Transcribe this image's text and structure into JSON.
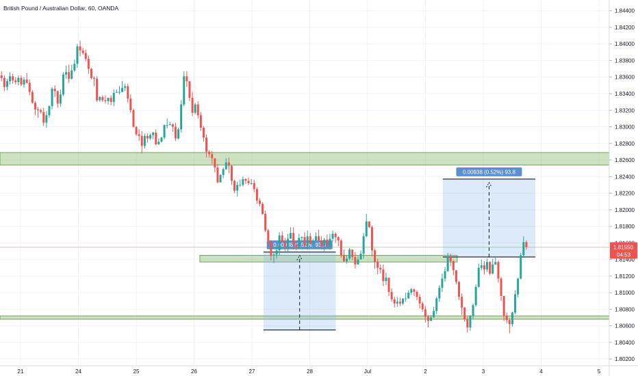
{
  "chart_data": {
    "type": "candlestick",
    "title": "British Pound / Australian Dollar, 60, OANDA",
    "ylim": [
      1.8016,
      1.8448
    ],
    "y_ticks": [
      "1.84400",
      "1.84200",
      "1.84000",
      "1.83800",
      "1.83600",
      "1.83400",
      "1.83200",
      "1.83000",
      "1.82800",
      "1.82600",
      "1.82400",
      "1.82200",
      "1.82000",
      "1.81800",
      "1.81600",
      "1.81400",
      "1.81200",
      "1.81000",
      "1.80800",
      "1.80600",
      "1.80400",
      "1.80200"
    ],
    "x_ticks": [
      {
        "label": "21",
        "day": 0
      },
      {
        "label": "24",
        "day": 1
      },
      {
        "label": "25",
        "day": 2
      },
      {
        "label": "26",
        "day": 3
      },
      {
        "label": "27",
        "day": 4
      },
      {
        "label": "28",
        "day": 5
      },
      {
        "label": "Jul",
        "day": 6
      },
      {
        "label": "2",
        "day": 7
      },
      {
        "label": "3",
        "day": 8
      },
      {
        "label": "4",
        "day": 9
      },
      {
        "label": "5",
        "day": 10
      }
    ],
    "current_price": {
      "value": "1.81550",
      "countdown": "04:53",
      "level": 1.8155
    },
    "zones": [
      {
        "name": "upper-resistance-zone",
        "from_day": -0.5,
        "to_day": 10.5,
        "low": 1.8254,
        "high": 1.8269
      },
      {
        "name": "middle-zone",
        "from_day": 3.1,
        "to_day": 7.55,
        "low": 1.8137,
        "high": 1.8145
      },
      {
        "name": "lower-support-zone",
        "from_day": -0.5,
        "to_day": 10.5,
        "low": 1.8068,
        "high": 1.8072
      }
    ],
    "measurements": [
      {
        "label": "0.00938 (0.52%) 93.8",
        "from_day": 4.2,
        "to_day": 5.45,
        "low": 1.8055,
        "high": 1.8149
      },
      {
        "label": "0.00938 (0.52%) 93.8",
        "from_day": 7.3,
        "to_day": 8.9,
        "low": 1.8143,
        "high": 1.8237
      }
    ],
    "candles": [
      [
        1.8362,
        1.8359,
        1.8367,
        1.8355
      ],
      [
        1.8359,
        1.8348,
        1.8362,
        1.8343
      ],
      [
        1.8348,
        1.8355,
        1.8358,
        1.8344
      ],
      [
        1.8355,
        1.8361,
        1.8366,
        1.8351
      ],
      [
        1.8361,
        1.8356,
        1.8364,
        1.8352
      ],
      [
        1.8356,
        1.8354,
        1.836,
        1.8351
      ],
      [
        1.8354,
        1.8359,
        1.8362,
        1.835
      ],
      [
        1.8359,
        1.8351,
        1.8362,
        1.8349
      ],
      [
        1.8351,
        1.8357,
        1.836,
        1.8347
      ],
      [
        1.8357,
        1.8353,
        1.8365,
        1.8352
      ],
      [
        1.8353,
        1.8342,
        1.8357,
        1.8338
      ],
      [
        1.8342,
        1.8329,
        1.8344,
        1.8328
      ],
      [
        1.8329,
        1.8321,
        1.8331,
        1.8314
      ],
      [
        1.8321,
        1.832,
        1.8324,
        1.8311
      ],
      [
        1.832,
        1.8318,
        1.8322,
        1.8316
      ],
      [
        1.8318,
        1.8305,
        1.8323,
        1.8301
      ],
      [
        1.8305,
        1.8314,
        1.8319,
        1.8299
      ],
      [
        1.8314,
        1.8325,
        1.8326,
        1.8311
      ],
      [
        1.8325,
        1.8346,
        1.8348,
        1.8321
      ],
      [
        1.8346,
        1.8343,
        1.835,
        1.8336
      ],
      [
        1.8343,
        1.8328,
        1.8344,
        1.8323
      ],
      [
        1.8328,
        1.8339,
        1.8345,
        1.8324
      ],
      [
        1.8339,
        1.8363,
        1.8366,
        1.8337
      ],
      [
        1.8363,
        1.8366,
        1.8374,
        1.8358
      ],
      [
        1.8366,
        1.8358,
        1.8375,
        1.8353
      ],
      [
        1.8358,
        1.8368,
        1.8375,
        1.8357
      ],
      [
        1.8368,
        1.8376,
        1.8381,
        1.8366
      ],
      [
        1.8376,
        1.8397,
        1.84,
        1.8371
      ],
      [
        1.8397,
        1.8392,
        1.8404,
        1.8385
      ],
      [
        1.8392,
        1.8389,
        1.8395,
        1.8387
      ],
      [
        1.8389,
        1.8382,
        1.8393,
        1.8379
      ],
      [
        1.8382,
        1.837,
        1.8386,
        1.8364
      ],
      [
        1.837,
        1.8359,
        1.8371,
        1.8357
      ],
      [
        1.8359,
        1.8358,
        1.8361,
        1.8349
      ],
      [
        1.8358,
        1.8332,
        1.8361,
        1.833
      ],
      [
        1.8332,
        1.8336,
        1.8337,
        1.833
      ],
      [
        1.8336,
        1.8332,
        1.8338,
        1.833
      ],
      [
        1.8332,
        1.8331,
        1.8338,
        1.8328
      ],
      [
        1.8331,
        1.8335,
        1.8335,
        1.8327
      ],
      [
        1.8335,
        1.833,
        1.8338,
        1.8326
      ],
      [
        1.833,
        1.8341,
        1.8345,
        1.8325
      ],
      [
        1.8341,
        1.8342,
        1.8345,
        1.8341
      ],
      [
        1.8342,
        1.8342,
        1.8349,
        1.8339
      ],
      [
        1.8342,
        1.8347,
        1.8355,
        1.8345
      ],
      [
        1.8347,
        1.8349,
        1.8352,
        1.8343
      ],
      [
        1.8349,
        1.8334,
        1.8352,
        1.8329
      ],
      [
        1.8334,
        1.832,
        1.8339,
        1.8317
      ],
      [
        1.832,
        1.83,
        1.8322,
        1.8299
      ],
      [
        1.83,
        1.8291,
        1.8301,
        1.8289
      ],
      [
        1.8291,
        1.8289,
        1.8297,
        1.8283
      ],
      [
        1.8289,
        1.8277,
        1.8295,
        1.8268
      ],
      [
        1.8277,
        1.8289,
        1.8292,
        1.8274
      ],
      [
        1.8289,
        1.8286,
        1.8292,
        1.8281
      ],
      [
        1.8286,
        1.829,
        1.8292,
        1.8284
      ],
      [
        1.829,
        1.8293,
        1.8294,
        1.8285
      ],
      [
        1.8293,
        1.8279,
        1.8297,
        1.8278
      ],
      [
        1.8279,
        1.8282,
        1.8286,
        1.8278
      ],
      [
        1.8282,
        1.8287,
        1.8288,
        1.8281
      ],
      [
        1.8287,
        1.8302,
        1.8303,
        1.8285
      ],
      [
        1.8302,
        1.8302,
        1.831,
        1.8298
      ],
      [
        1.8302,
        1.8303,
        1.8306,
        1.8302
      ],
      [
        1.8303,
        1.83,
        1.8304,
        1.8294
      ],
      [
        1.83,
        1.8286,
        1.8305,
        1.8283
      ],
      [
        1.8286,
        1.8297,
        1.8299,
        1.8285
      ],
      [
        1.8297,
        1.8327,
        1.8332,
        1.8293
      ],
      [
        1.8327,
        1.8361,
        1.8367,
        1.8325
      ],
      [
        1.8361,
        1.8355,
        1.8367,
        1.8348
      ],
      [
        1.8355,
        1.8335,
        1.8355,
        1.8331
      ],
      [
        1.8335,
        1.8317,
        1.8342,
        1.8313
      ],
      [
        1.8317,
        1.8327,
        1.8329,
        1.8315
      ],
      [
        1.8327,
        1.8314,
        1.8331,
        1.831
      ],
      [
        1.8314,
        1.8299,
        1.8318,
        1.8295
      ],
      [
        1.8299,
        1.8287,
        1.8301,
        1.8282
      ],
      [
        1.8287,
        1.827,
        1.8291,
        1.8263
      ],
      [
        1.827,
        1.8267,
        1.8272,
        1.8263
      ],
      [
        1.8267,
        1.8262,
        1.8271,
        1.8255
      ],
      [
        1.8262,
        1.8251,
        1.8262,
        1.8245
      ],
      [
        1.8251,
        1.8233,
        1.8255,
        1.8232
      ],
      [
        1.8233,
        1.8242,
        1.8243,
        1.8233
      ],
      [
        1.8242,
        1.8249,
        1.8251,
        1.8238
      ],
      [
        1.8249,
        1.8257,
        1.8262,
        1.8248
      ],
      [
        1.8257,
        1.8253,
        1.8263,
        1.8244
      ],
      [
        1.8253,
        1.8235,
        1.8254,
        1.823
      ],
      [
        1.8235,
        1.8223,
        1.8236,
        1.822
      ],
      [
        1.8223,
        1.823,
        1.8234,
        1.8216
      ],
      [
        1.823,
        1.823,
        1.8236,
        1.8228
      ],
      [
        1.823,
        1.8237,
        1.824,
        1.8228
      ],
      [
        1.8237,
        1.8235,
        1.8238,
        1.8231
      ],
      [
        1.8235,
        1.8232,
        1.8239,
        1.823
      ],
      [
        1.8232,
        1.8232,
        1.8237,
        1.823
      ],
      [
        1.8232,
        1.8225,
        1.8236,
        1.8221
      ],
      [
        1.8225,
        1.8211,
        1.8227,
        1.8207
      ],
      [
        1.8211,
        1.8207,
        1.8214,
        1.8204
      ],
      [
        1.8207,
        1.8195,
        1.8209,
        1.8194
      ],
      [
        1.8195,
        1.8175,
        1.8199,
        1.8173
      ],
      [
        1.8175,
        1.8162,
        1.8177,
        1.8156
      ],
      [
        1.8162,
        1.8145,
        1.8163,
        1.8139
      ],
      [
        1.8145,
        1.8146,
        1.8148,
        1.8136
      ],
      [
        1.8146,
        1.8151,
        1.8157,
        1.8141
      ],
      [
        1.8151,
        1.8169,
        1.8173,
        1.8145
      ],
      [
        1.8169,
        1.8161,
        1.8174,
        1.8161
      ],
      [
        1.8161,
        1.8155,
        1.8166,
        1.815
      ],
      [
        1.8155,
        1.8165,
        1.8171,
        1.8148
      ],
      [
        1.8165,
        1.8172,
        1.8179,
        1.8167
      ],
      [
        1.8172,
        1.8158,
        1.8179,
        1.8152
      ],
      [
        1.8158,
        1.8155,
        1.8163,
        1.8151
      ],
      [
        1.8155,
        1.8166,
        1.8171,
        1.8153
      ],
      [
        1.8166,
        1.8167,
        1.8168,
        1.8163
      ],
      [
        1.8167,
        1.8157,
        1.8173,
        1.8154
      ],
      [
        1.8157,
        1.8168,
        1.8175,
        1.8152
      ],
      [
        1.8168,
        1.8159,
        1.8172,
        1.8158
      ],
      [
        1.8159,
        1.8163,
        1.8165,
        1.8154
      ],
      [
        1.8163,
        1.8168,
        1.8173,
        1.8163
      ],
      [
        1.8168,
        1.8163,
        1.8176,
        1.8162
      ],
      [
        1.8163,
        1.8156,
        1.8168,
        1.8152
      ],
      [
        1.8156,
        1.8164,
        1.8166,
        1.815
      ],
      [
        1.8164,
        1.8158,
        1.817,
        1.8154
      ],
      [
        1.8158,
        1.8165,
        1.8171,
        1.8152
      ],
      [
        1.8165,
        1.8171,
        1.8175,
        1.8162
      ],
      [
        1.8171,
        1.8167,
        1.8173,
        1.816
      ],
      [
        1.8167,
        1.8163,
        1.8168,
        1.8156
      ],
      [
        1.8163,
        1.8145,
        1.8165,
        1.8142
      ],
      [
        1.8145,
        1.8138,
        1.8152,
        1.8137
      ],
      [
        1.8138,
        1.8141,
        1.8145,
        1.8135
      ],
      [
        1.8141,
        1.8152,
        1.8154,
        1.8139
      ],
      [
        1.8152,
        1.8143,
        1.8152,
        1.8139
      ],
      [
        1.8143,
        1.8134,
        1.8149,
        1.8129
      ],
      [
        1.8134,
        1.814,
        1.8144,
        1.8134
      ],
      [
        1.814,
        1.8147,
        1.8151,
        1.8143
      ],
      [
        1.8147,
        1.8168,
        1.8172,
        1.8141
      ],
      [
        1.8168,
        1.8186,
        1.8195,
        1.8167
      ],
      [
        1.8186,
        1.8179,
        1.8186,
        1.8178
      ],
      [
        1.8179,
        1.8151,
        1.8181,
        1.8144
      ],
      [
        1.8151,
        1.8137,
        1.8153,
        1.8129
      ],
      [
        1.8137,
        1.813,
        1.8141,
        1.8122
      ],
      [
        1.813,
        1.8128,
        1.8134,
        1.8123
      ],
      [
        1.8128,
        1.8114,
        1.8134,
        1.8108
      ],
      [
        1.8114,
        1.8118,
        1.8124,
        1.8109
      ],
      [
        1.8118,
        1.8101,
        1.8118,
        1.8096
      ],
      [
        1.8101,
        1.8092,
        1.8105,
        1.8089
      ],
      [
        1.8092,
        1.8087,
        1.8095,
        1.8082
      ],
      [
        1.8087,
        1.8089,
        1.8095,
        1.8083
      ],
      [
        1.8089,
        1.8087,
        1.8094,
        1.8084
      ],
      [
        1.8087,
        1.8093,
        1.8093,
        1.8085
      ],
      [
        1.8093,
        1.8093,
        1.81,
        1.8089
      ],
      [
        1.8093,
        1.81,
        1.8103,
        1.8093
      ],
      [
        1.81,
        1.8104,
        1.8106,
        1.8097
      ],
      [
        1.8104,
        1.8101,
        1.8105,
        1.8096
      ],
      [
        1.8101,
        1.8095,
        1.8103,
        1.8091
      ],
      [
        1.8095,
        1.8087,
        1.8098,
        1.8081
      ],
      [
        1.8087,
        1.808,
        1.8089,
        1.8077
      ],
      [
        1.808,
        1.8071,
        1.8084,
        1.8064
      ],
      [
        1.8071,
        1.8066,
        1.8073,
        1.8058
      ],
      [
        1.8066,
        1.807,
        1.8073,
        1.8066
      ],
      [
        1.807,
        1.8078,
        1.8083,
        1.807
      ],
      [
        1.8078,
        1.8093,
        1.8095,
        1.8074
      ],
      [
        1.8093,
        1.8106,
        1.8109,
        1.8089
      ],
      [
        1.8106,
        1.8117,
        1.8123,
        1.8101
      ],
      [
        1.8117,
        1.8126,
        1.8131,
        1.8113
      ],
      [
        1.8126,
        1.8143,
        1.8148,
        1.8125
      ],
      [
        1.8143,
        1.8138,
        1.8147,
        1.8132
      ],
      [
        1.8138,
        1.8127,
        1.8139,
        1.8121
      ],
      [
        1.8127,
        1.8113,
        1.8127,
        1.811
      ],
      [
        1.8113,
        1.8095,
        1.8114,
        1.8091
      ],
      [
        1.8095,
        1.8082,
        1.8099,
        1.8073
      ],
      [
        1.8082,
        1.8068,
        1.8083,
        1.8065
      ],
      [
        1.8068,
        1.8058,
        1.8071,
        1.8052
      ],
      [
        1.8058,
        1.8072,
        1.8073,
        1.8054
      ],
      [
        1.8072,
        1.8085,
        1.8087,
        1.8068
      ],
      [
        1.8085,
        1.8107,
        1.811,
        1.8083
      ],
      [
        1.8107,
        1.813,
        1.8135,
        1.8106
      ],
      [
        1.813,
        1.8133,
        1.814,
        1.8127
      ],
      [
        1.8133,
        1.8128,
        1.8138,
        1.8122
      ],
      [
        1.8128,
        1.8137,
        1.8141,
        1.8125
      ],
      [
        1.8137,
        1.8123,
        1.8138,
        1.8121
      ],
      [
        1.8123,
        1.8134,
        1.8141,
        1.8122
      ],
      [
        1.8134,
        1.8137,
        1.8144,
        1.8134
      ],
      [
        1.8137,
        1.8117,
        1.8139,
        1.8112
      ],
      [
        1.8117,
        1.8096,
        1.8119,
        1.809
      ],
      [
        1.8096,
        1.8072,
        1.8096,
        1.8066
      ],
      [
        1.8072,
        1.8067,
        1.8076,
        1.8063
      ],
      [
        1.8067,
        1.8062,
        1.8069,
        1.8051
      ],
      [
        1.8062,
        1.8076,
        1.8077,
        1.8059
      ],
      [
        1.8076,
        1.8098,
        1.8103,
        1.8074
      ],
      [
        1.8098,
        1.8117,
        1.8118,
        1.8094
      ],
      [
        1.8117,
        1.8145,
        1.8148,
        1.8116
      ],
      [
        1.8145,
        1.8161,
        1.8168,
        1.8142
      ],
      [
        1.8161,
        1.8155,
        1.8163,
        1.8152
      ]
    ]
  }
}
